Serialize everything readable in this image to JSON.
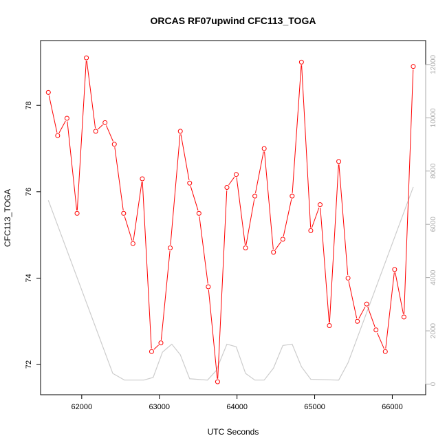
{
  "chart_data": {
    "type": "line",
    "title": "ORCAS RF07upwind CFC113_TOGA",
    "xlabel": "UTC Seconds",
    "ylabel": "CFC113_TOGA",
    "xlim": [
      61470,
      66430
    ],
    "ylim": [
      71.3,
      79.5
    ],
    "y2lim": [
      -400,
      12900
    ],
    "x_ticks": [
      62000,
      63000,
      64000,
      65000,
      66000
    ],
    "y_ticks": [
      72,
      74,
      76,
      78
    ],
    "y2_ticks": [
      0,
      2000,
      4000,
      6000,
      8000,
      10000,
      12000
    ],
    "grid": false,
    "series": [
      {
        "role": "primary",
        "color": "#ff0000",
        "marker": "circle",
        "x": [
          61570,
          61690,
          61810,
          61940,
          62060,
          62180,
          62300,
          62420,
          62540,
          62660,
          62780,
          62900,
          63020,
          63140,
          63270,
          63390,
          63510,
          63630,
          63750,
          63870,
          63990,
          64110,
          64230,
          64350,
          64470,
          64590,
          64710,
          64830,
          64950,
          65070,
          65190,
          65310,
          65430,
          65550,
          65670,
          65790,
          65910,
          66030,
          66150,
          66270
        ],
        "values": [
          78.3,
          77.3,
          77.7,
          75.5,
          79.1,
          77.4,
          77.6,
          77.1,
          75.5,
          74.8,
          76.3,
          72.3,
          72.5,
          74.7,
          77.4,
          76.2,
          75.5,
          73.8,
          71.6,
          76.1,
          76.4,
          74.7,
          75.9,
          77.0,
          74.6,
          74.9,
          75.9,
          79.0,
          75.1,
          75.7,
          72.9,
          76.7,
          74.0,
          73.0,
          73.4,
          72.8,
          72.3,
          74.2,
          73.1,
          78.9
        ]
      },
      {
        "role": "secondary",
        "color": "#cccccc",
        "x": [
          61570,
          62400,
          62550,
          62800,
          62920,
          63040,
          63160,
          63270,
          63390,
          63620,
          63730,
          63870,
          63990,
          64110,
          64230,
          64350,
          64470,
          64590,
          64710,
          64830,
          64950,
          65310,
          65430,
          66270
        ],
        "values": [
          6900,
          400,
          150,
          150,
          250,
          1200,
          1500,
          1100,
          200,
          150,
          500,
          1500,
          1400,
          400,
          150,
          150,
          600,
          1450,
          1500,
          650,
          180,
          150,
          800,
          7400
        ]
      }
    ]
  }
}
